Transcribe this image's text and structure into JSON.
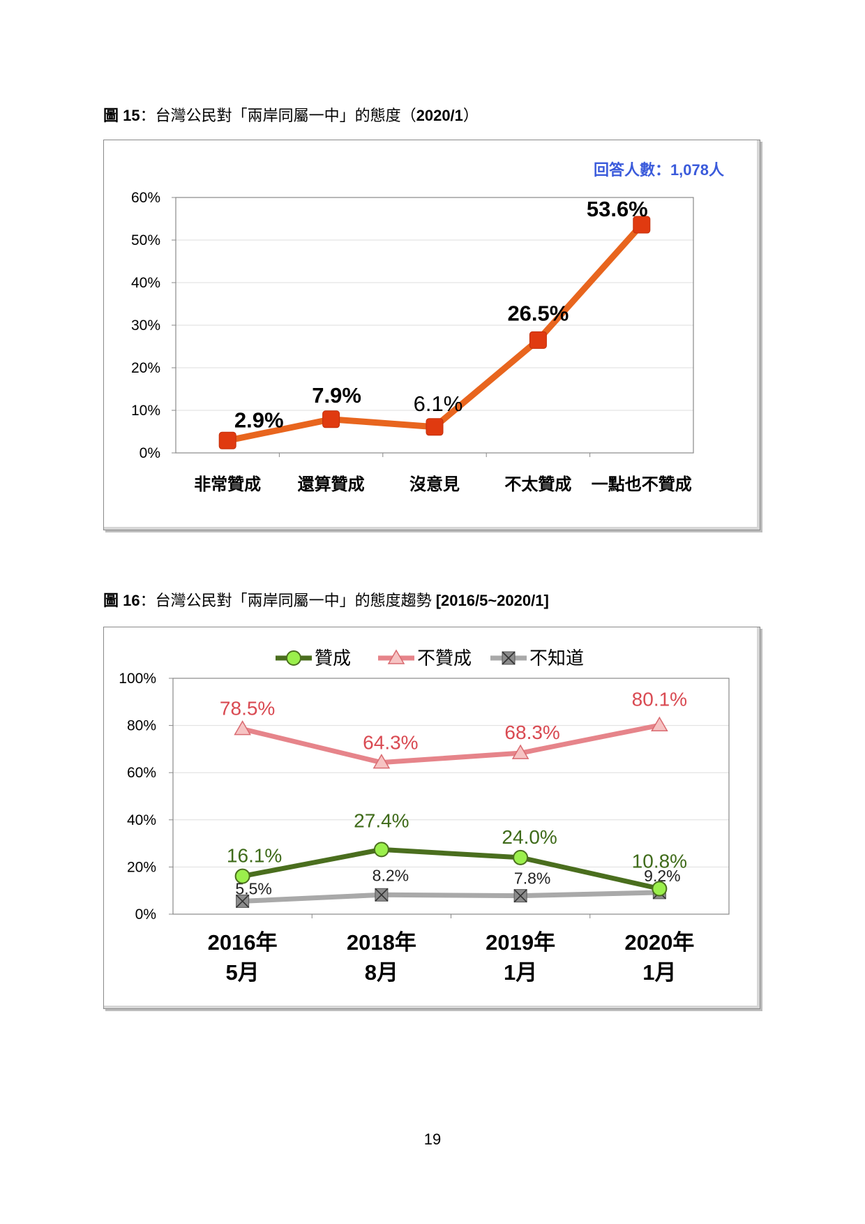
{
  "figure15": {
    "caption_num": "圖 15",
    "caption_text": "：台灣公民對「兩岸同屬一中」的態度（",
    "caption_date": "2020/1",
    "caption_close": "）"
  },
  "figure16": {
    "caption_num": "圖 16",
    "caption_text": "：台灣公民對「兩岸同屬一中」的態度趨勢 ",
    "caption_range": "[2016/5~2020/1]"
  },
  "page_number": "19",
  "chart_data": [
    {
      "type": "line",
      "title": "",
      "annotation": "回答人數：1,078人",
      "categories": [
        "非常贊成",
        "還算贊成",
        "沒意見",
        "不太贊成",
        "一點也不贊成"
      ],
      "values": [
        2.9,
        7.9,
        6.1,
        26.5,
        53.6
      ],
      "value_labels": [
        "2.9%",
        "7.9%",
        "6.1%",
        "26.5%",
        "53.6%"
      ],
      "ylim": [
        0,
        60
      ],
      "yticks": [
        "0%",
        "10%",
        "20%",
        "30%",
        "40%",
        "50%",
        "60%"
      ],
      "grid": true,
      "legend": "none",
      "colors": {
        "line": "#E8651E",
        "marker": "#E03A10",
        "annotation": "#3B5BDB"
      }
    },
    {
      "type": "line",
      "title": "",
      "categories": [
        [
          "2016年",
          "5月"
        ],
        [
          "2018年",
          "8月"
        ],
        [
          "2019年",
          "1月"
        ],
        [
          "2020年",
          "1月"
        ]
      ],
      "ylim": [
        0,
        100
      ],
      "yticks": [
        "0%",
        "20%",
        "40%",
        "60%",
        "80%",
        "100%"
      ],
      "grid": true,
      "legend": "top",
      "series": [
        {
          "name": "贊成",
          "values": [
            16.1,
            27.4,
            24.0,
            10.8
          ],
          "labels": [
            "16.1%",
            "27.4%",
            "24.0%",
            "10.8%"
          ],
          "line_color": "#4A6E1E",
          "marker_fill": "#9BEF4C",
          "marker": "circle",
          "label_color": "#3F6B1A"
        },
        {
          "name": "不贊成",
          "values": [
            78.5,
            64.3,
            68.3,
            80.1
          ],
          "labels": [
            "78.5%",
            "64.3%",
            "68.3%",
            "80.1%"
          ],
          "line_color": "#E6848A",
          "marker_fill": "#F6C3C3",
          "marker": "triangle",
          "label_color": "#D94A52"
        },
        {
          "name": "不知道",
          "values": [
            5.5,
            8.2,
            7.8,
            9.2
          ],
          "labels": [
            "5.5%",
            "8.2%",
            "7.8%",
            "9.2%"
          ],
          "line_color": "#A9A9A9",
          "marker_fill": "#8C8C8C",
          "marker": "x-square",
          "label_color": "#222222"
        }
      ]
    }
  ]
}
